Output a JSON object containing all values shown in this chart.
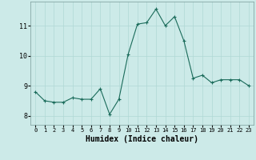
{
  "x": [
    0,
    1,
    2,
    3,
    4,
    5,
    6,
    7,
    8,
    9,
    10,
    11,
    12,
    13,
    14,
    15,
    16,
    17,
    18,
    19,
    20,
    21,
    22,
    23
  ],
  "y": [
    8.8,
    8.5,
    8.45,
    8.45,
    8.6,
    8.55,
    8.55,
    8.9,
    8.05,
    8.55,
    10.05,
    11.05,
    11.1,
    11.55,
    11.0,
    11.3,
    10.5,
    9.25,
    9.35,
    9.1,
    9.2,
    9.2,
    9.2,
    9.0
  ],
  "xlabel": "Humidex (Indice chaleur)",
  "xlim": [
    -0.5,
    23.5
  ],
  "ylim": [
    7.7,
    11.8
  ],
  "yticks": [
    8,
    9,
    10,
    11
  ],
  "xtick_labels": [
    "0",
    "1",
    "2",
    "3",
    "4",
    "5",
    "6",
    "7",
    "8",
    "9",
    "10",
    "11",
    "12",
    "13",
    "14",
    "15",
    "16",
    "17",
    "18",
    "19",
    "20",
    "21",
    "22",
    "23"
  ],
  "line_color": "#1a6b5a",
  "marker": "+",
  "bg_color": "#cceae8",
  "grid_color": "#b0d8d5",
  "label_fontsize": 7,
  "tick_fontsize": 6,
  "spine_color": "#7a9a98"
}
